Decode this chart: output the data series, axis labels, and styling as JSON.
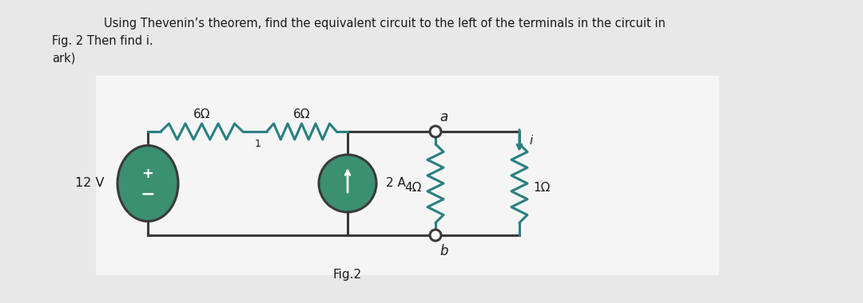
{
  "title_line1": "Using Thevenin’s theorem, find the equivalent circuit to the left of the terminals in the circuit in",
  "title_line2": "Fig. 2 Then find i.",
  "title_line3": "ark)",
  "fig_label": "Fig.2",
  "background_color": "#e8e8e8",
  "inner_bg": "#f0f0f0",
  "wire_color": "#3a3a3a",
  "resistor_color": "#2a8080",
  "source_color": "#3a9070",
  "text_color": "#1a1a1a",
  "label_6ohm_1": "6Ω",
  "label_6ohm_2": "6Ω",
  "label_4ohm": "4Ω",
  "label_1ohm": "1Ω",
  "label_2A": "2 A",
  "label_12V": "12 V",
  "label_a": "a",
  "label_b": "b",
  "label_i": "i",
  "label_1": "1"
}
